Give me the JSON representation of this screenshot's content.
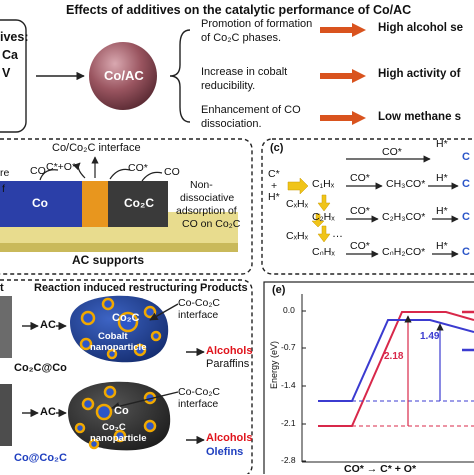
{
  "title": "Effects of additives on the catalytic performance of Co/AC",
  "panel_a": {
    "additives_fragment": "ives:",
    "additive_1": "Ca",
    "additive_2": "V",
    "sphere_label": "Co/AC",
    "effects": [
      {
        "text_1": "Promotion of formation",
        "text_2": "of Co₂C phases.",
        "result": "High alcohol se"
      },
      {
        "text_1": "Increase in cobalt",
        "text_2": "reducibility.",
        "result": "High activity of"
      },
      {
        "text_1": "Enhancement of CO",
        "text_2": "dissociation.",
        "result": "Low methane s"
      }
    ]
  },
  "panel_b": {
    "interface_label": "Co/Co₂C interface",
    "adsorbate_top": "C*+O*",
    "co_left": "CO",
    "co_center": "CO*",
    "co_right": "CO",
    "left_fragment": "re",
    "left_fragment_2": "f",
    "block_co": "Co",
    "block_co2c": "Co₂C",
    "note_1": "Non-",
    "note_2": "dissociative",
    "note_3": "adsorption of",
    "note_4": "CO on Co₂C",
    "support": "AC supports"
  },
  "panel_c": {
    "tag": "(c)",
    "init_c": "C*",
    "init_plus": "+",
    "init_h": "H*",
    "top_co": "CO*",
    "top_h": "H*",
    "top_product": "C",
    "rows": [
      {
        "species": "C₁Hₓ",
        "ads": "CO*",
        "intermediate": "CH₃CO*",
        "h": "H*",
        "product": "C"
      },
      {
        "species": "C₂Hₓ",
        "ads": "CO*",
        "intermediate": "C₂H₃CO*",
        "h": "H*",
        "product": "C"
      },
      {
        "species": "CₙHₓ",
        "ads": "CO*",
        "intermediate": "CₙH₂CO*",
        "h": "H*",
        "product": "C"
      }
    ],
    "side_species": [
      "CₓHₓ",
      "CₓHₓ"
    ],
    "ellipsis": "…"
  },
  "panel_d": {
    "header_left": "t",
    "header_center": "Reaction induced restructuring",
    "header_right": "Products",
    "top": {
      "ac": "AC",
      "inner": "Co₂C",
      "sphere_1": "Cobalt",
      "sphere_2": "nanoparticle",
      "interface_1": "Co-Co₂C",
      "interface_2": "interface",
      "product_1": "Alcohols",
      "product_2": "Paraffins",
      "caption": "Co₂C@Co"
    },
    "bottom": {
      "ac": "AC",
      "inner": "Co",
      "sphere_1": "Co₂C",
      "sphere_2": "nanoparticle",
      "interface_1": "Co-Co₂C",
      "interface_2": "interface",
      "product_1": "Alcohols",
      "product_2": "Olefins",
      "caption": "Co@Co₂C"
    }
  },
  "panel_e": {
    "tag": "(e)",
    "ylabel": "Energy (eV)",
    "yticks": [
      "0.0",
      "-0.7",
      "-1.4",
      "-2.1",
      "-2.8"
    ],
    "barrier_red": "2.18",
    "barrier_blue": "1.49",
    "reaction": "CO* → C* + O*"
  },
  "colors": {
    "arrow": "#d9531e",
    "sphere": "#9a5560",
    "co_block": "#2b3fa8",
    "interface_block": "#e8961e",
    "co2c_block": "#3a3a3a",
    "support": "#e8dc8e",
    "nanoparticle_blue": "#1d3f8e",
    "nanoparticle_dark": "#2b2b2b",
    "alcohol": "#e0141c",
    "olefin": "#1f3fbf",
    "curve_red": "#d8284a",
    "curve_blue": "#3b3bd0",
    "yellow_arrow": "#f0c419"
  }
}
